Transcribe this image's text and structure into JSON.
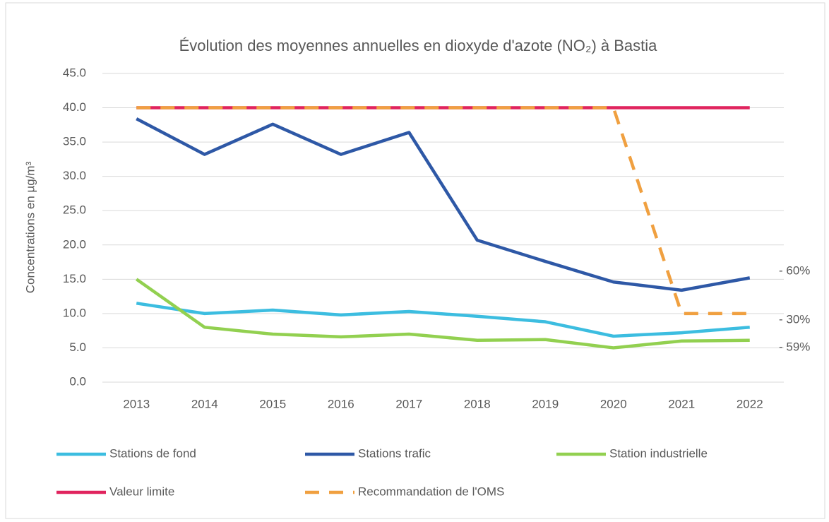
{
  "chart_data": {
    "type": "line",
    "title": "Évolution des moyennes annuelles en dioxyde d'azote (NO₂) à Bastia",
    "y_label": "Concentrations en µg/m³",
    "categories": [
      "2013",
      "2014",
      "2015",
      "2016",
      "2017",
      "2018",
      "2019",
      "2020",
      "2021",
      "2022"
    ],
    "series": [
      {
        "name": "Stations de fond",
        "color": "#3cbde0",
        "values": [
          11.5,
          10.0,
          10.5,
          9.8,
          10.3,
          9.6,
          8.8,
          6.7,
          7.2,
          8.0
        ]
      },
      {
        "name": "Stations trafic",
        "color": "#2e58a6",
        "values": [
          38.4,
          33.2,
          37.6,
          33.2,
          36.4,
          20.7,
          17.6,
          14.6,
          13.4,
          15.2
        ]
      },
      {
        "name": "Station industrielle",
        "color": "#92d050",
        "values": [
          15.0,
          8.0,
          7.0,
          6.6,
          7.0,
          6.1,
          6.2,
          5.0,
          6.0,
          6.1
        ]
      },
      {
        "name": "Valeur limite",
        "color": "#e0245e",
        "values": [
          40,
          40,
          40,
          40,
          40,
          40,
          40,
          40,
          40,
          40
        ]
      },
      {
        "name": "Recommandation de l'OMS",
        "color": "#f0a040",
        "dashed": true,
        "values": [
          40,
          40,
          40,
          40,
          40,
          40,
          40,
          40,
          10,
          10
        ]
      }
    ],
    "annotations": [
      "- 60%",
      "- 30%",
      "- 59%"
    ],
    "ylim": [
      0,
      45
    ],
    "yticks": [
      {
        "value": 0,
        "label": "0.0"
      },
      {
        "value": 5,
        "label": "5.0"
      },
      {
        "value": 10,
        "label": "10.0"
      },
      {
        "value": 15,
        "label": "15.0"
      },
      {
        "value": 20,
        "label": "20.0"
      },
      {
        "value": 25,
        "label": "25.0"
      },
      {
        "value": 30,
        "label": "30.0"
      },
      {
        "value": 35,
        "label": "35.0"
      },
      {
        "value": 40,
        "label": "40.0"
      },
      {
        "value": 45,
        "label": "45.0"
      }
    ],
    "grid": true
  }
}
